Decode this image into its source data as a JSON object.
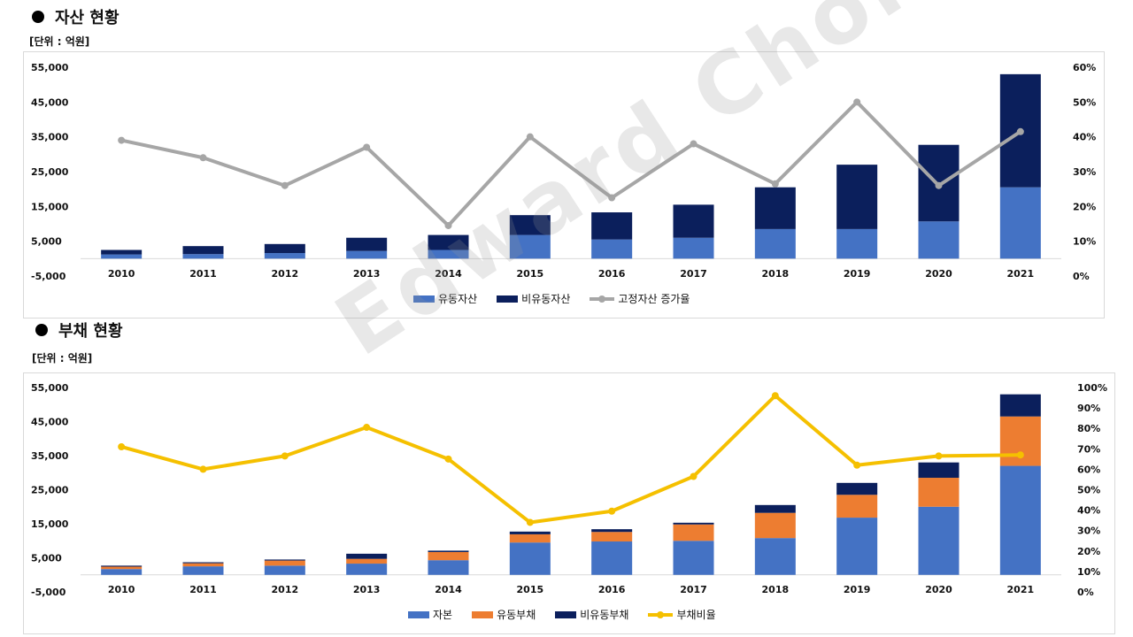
{
  "watermark": "Edward Choi",
  "chart_data": [
    {
      "type": "bar",
      "section_title": "자산 현황",
      "unit_label": "[단위 : 억원]",
      "categories": [
        "2010",
        "2011",
        "2012",
        "2013",
        "2014",
        "2015",
        "2016",
        "2017",
        "2018",
        "2019",
        "2020",
        "2021"
      ],
      "series": [
        {
          "name": "유동자산",
          "kind": "bar",
          "color": "#4472c4",
          "values": [
            1200,
            1300,
            1600,
            2200,
            2500,
            6800,
            5500,
            6000,
            8500,
            8500,
            10700,
            20500
          ]
        },
        {
          "name": "비유동자산",
          "kind": "bar",
          "color": "#0b1f5c",
          "values": [
            1300,
            2300,
            2600,
            3800,
            4300,
            5700,
            7800,
            9500,
            12000,
            18500,
            22000,
            32500
          ]
        },
        {
          "name": "고정자산 증가율",
          "kind": "line",
          "axis": "right",
          "color": "#a6a6a6",
          "values": [
            39,
            34,
            26,
            37,
            14.5,
            40,
            22.5,
            38,
            26.5,
            50,
            26,
            41.5
          ]
        }
      ],
      "ylim": [
        -5000,
        55000
      ],
      "yticks": [
        "55,000",
        "45,000",
        "35,000",
        "25,000",
        "15,000",
        "5,000",
        "-5,000"
      ],
      "y2lim": [
        0,
        60
      ],
      "y2ticks": [
        "60%",
        "50%",
        "40%",
        "30%",
        "20%",
        "10%",
        "0%"
      ],
      "legend": "bottom"
    },
    {
      "type": "bar",
      "section_title": "부채 현황",
      "unit_label": "[단위 : 억원]",
      "categories": [
        "2010",
        "2011",
        "2012",
        "2013",
        "2014",
        "2015",
        "2016",
        "2017",
        "2018",
        "2019",
        "2020",
        "2021"
      ],
      "series": [
        {
          "name": "자본",
          "kind": "bar",
          "color": "#4472c4",
          "values": [
            1700,
            2500,
            2700,
            3300,
            4300,
            9500,
            9800,
            10000,
            10800,
            16800,
            20000,
            32000
          ]
        },
        {
          "name": "유동부채",
          "kind": "bar",
          "color": "#ed7d31",
          "values": [
            700,
            900,
            1500,
            1400,
            2400,
            2400,
            2800,
            4800,
            7400,
            6700,
            8500,
            14500
          ]
        },
        {
          "name": "비유동부채",
          "kind": "bar",
          "color": "#0b1f5c",
          "values": [
            300,
            300,
            300,
            1500,
            400,
            800,
            800,
            500,
            2300,
            3500,
            4500,
            6500
          ]
        },
        {
          "name": "부채비율",
          "kind": "line",
          "axis": "right",
          "color": "#f5c000",
          "values": [
            71,
            60,
            66.5,
            80.5,
            65,
            34,
            39.5,
            56.5,
            96,
            62,
            66.5,
            67
          ]
        }
      ],
      "ylim": [
        -5000,
        55000
      ],
      "yticks": [
        "55,000",
        "45,000",
        "35,000",
        "25,000",
        "15,000",
        "5,000",
        "-5,000"
      ],
      "y2lim": [
        0,
        100
      ],
      "y2ticks": [
        "100%",
        "90%",
        "80%",
        "70%",
        "60%",
        "50%",
        "40%",
        "30%",
        "20%",
        "10%",
        "0%"
      ],
      "legend": "bottom"
    }
  ]
}
